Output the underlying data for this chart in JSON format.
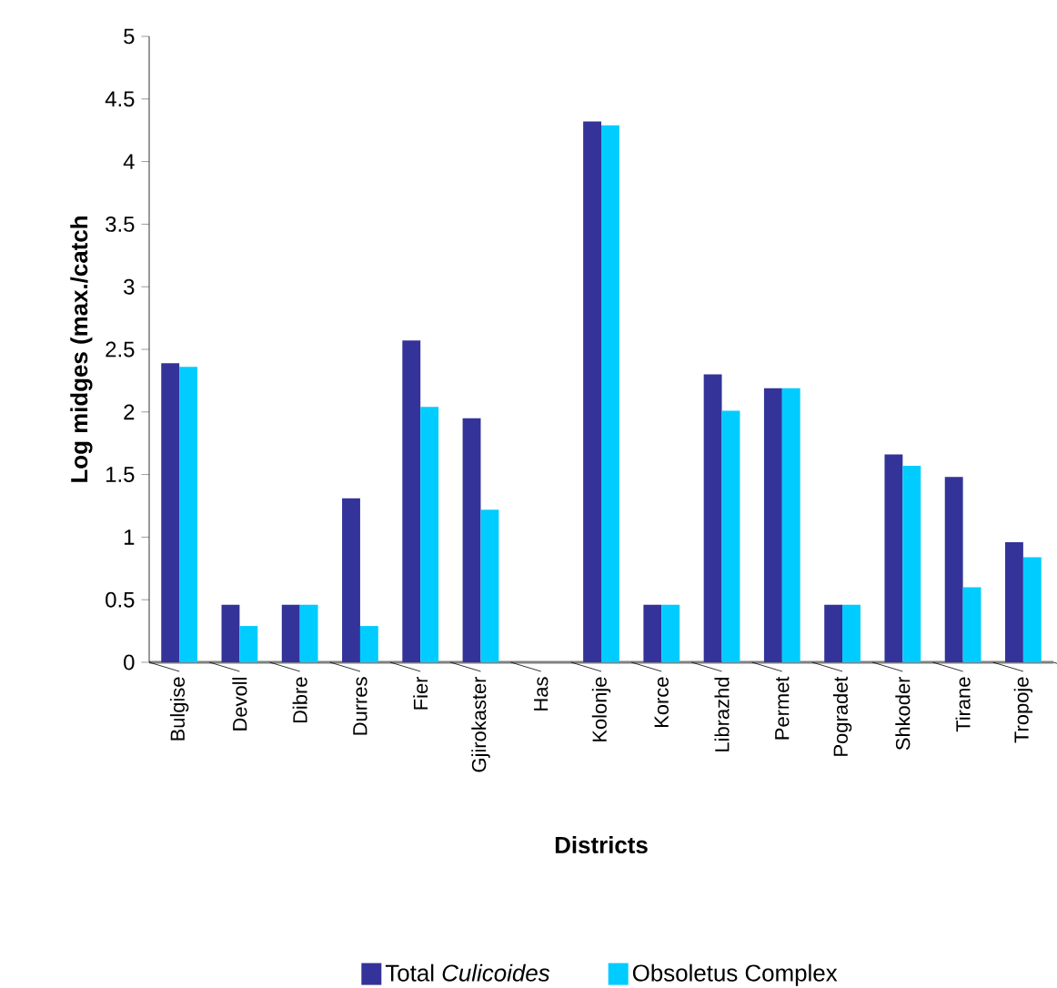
{
  "chart_data": {
    "type": "bar",
    "xlabel": "Districts",
    "ylabel": "Log midges (max./catch",
    "categories": [
      "Bulgise",
      "Devoll",
      "Dibre",
      "Durres",
      "Fier",
      "Gjirokaster",
      "Has",
      "Kolonje",
      "Korce",
      "Librazhd",
      "Permet",
      "Pogradet",
      "Shkoder",
      "Tirane",
      "Tropoje"
    ],
    "series": [
      {
        "name": "Total *Culicoides*",
        "color": "#333399",
        "values": [
          2.39,
          0.46,
          0.46,
          1.31,
          2.57,
          1.95,
          null,
          4.32,
          0.46,
          2.3,
          2.19,
          0.46,
          1.66,
          1.48,
          0.96
        ]
      },
      {
        "name": "Obsoletus Complex",
        "color": "#00ccff",
        "values": [
          2.36,
          0.29,
          0.46,
          0.29,
          2.04,
          1.22,
          null,
          4.29,
          0.46,
          2.01,
          2.19,
          0.46,
          1.57,
          0.6,
          0.84
        ]
      }
    ],
    "ylim": [
      0,
      5
    ],
    "yticks": [
      0,
      0.5,
      1,
      1.5,
      2,
      2.5,
      3,
      3.5,
      4,
      4.5,
      5
    ],
    "grid": false,
    "legend": "bottom"
  }
}
